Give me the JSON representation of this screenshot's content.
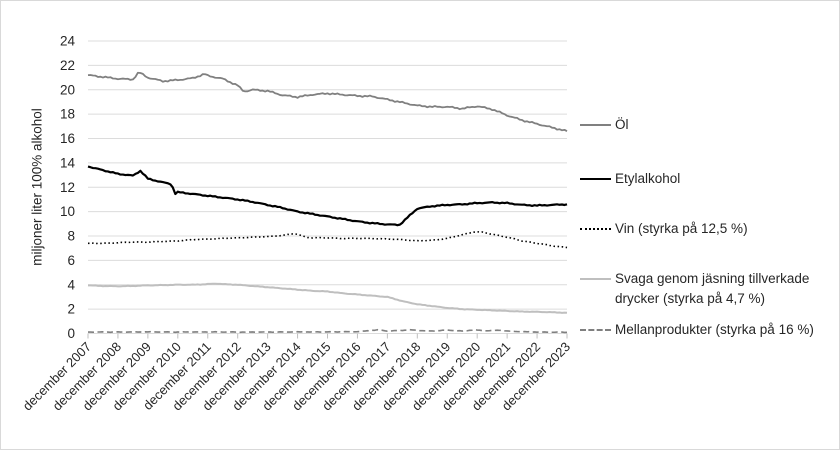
{
  "window": {
    "background": "#ffffff",
    "border_color": "#d9d9d9"
  },
  "chart_data": {
    "type": "line",
    "title": "",
    "ylabel": "miljoner liter 100% alkohol",
    "xlabel": "",
    "ylim": [
      0,
      24
    ],
    "ytick_step": 2,
    "grid": "horizontal",
    "gridline_color": "#dcdcdc",
    "axis_text_color": "#262626",
    "tick_mark_color": "#bfbfbf",
    "legend_position": "right",
    "x_unit": "years_after_december_2007",
    "x_tick_labels": [
      "december 2007",
      "december 2008",
      "december 2009",
      "december 2010",
      "december 2011",
      "december 2012",
      "december 2013",
      "december 2014",
      "december 2015",
      "december 2016",
      "december 2017",
      "december 2018",
      "december 2019",
      "december 2020",
      "december 2021",
      "december 2022",
      "december 2023"
    ],
    "series": [
      {
        "name": "Öl",
        "color": "#808080",
        "style": "solid",
        "width": 1.8,
        "noise": 0.07,
        "points": [
          [
            0,
            21.2
          ],
          [
            0.5,
            21.05
          ],
          [
            1,
            20.9
          ],
          [
            1.5,
            20.85
          ],
          [
            1.7,
            21.45
          ],
          [
            2,
            21.0
          ],
          [
            2.5,
            20.7
          ],
          [
            3,
            20.8
          ],
          [
            3.5,
            20.95
          ],
          [
            3.9,
            21.3
          ],
          [
            4,
            21.15
          ],
          [
            4.5,
            20.9
          ],
          [
            5,
            20.35
          ],
          [
            5.2,
            19.85
          ],
          [
            5.5,
            20.0
          ],
          [
            6,
            19.9
          ],
          [
            6.5,
            19.55
          ],
          [
            7,
            19.4
          ],
          [
            7.5,
            19.6
          ],
          [
            8,
            19.7
          ],
          [
            8.5,
            19.6
          ],
          [
            9,
            19.5
          ],
          [
            9.5,
            19.45
          ],
          [
            10,
            19.2
          ],
          [
            10.5,
            18.95
          ],
          [
            11,
            18.7
          ],
          [
            11.5,
            18.6
          ],
          [
            12,
            18.6
          ],
          [
            12.5,
            18.45
          ],
          [
            13,
            18.65
          ],
          [
            13.5,
            18.4
          ],
          [
            14,
            17.9
          ],
          [
            14.5,
            17.5
          ],
          [
            15,
            17.2
          ],
          [
            15.5,
            16.9
          ],
          [
            16,
            16.6
          ]
        ]
      },
      {
        "name": "Etylalkohol",
        "color": "#000000",
        "style": "solid",
        "width": 2.2,
        "noise": 0.05,
        "points": [
          [
            0,
            13.7
          ],
          [
            0.5,
            13.4
          ],
          [
            1,
            13.1
          ],
          [
            1.5,
            12.95
          ],
          [
            1.75,
            13.35
          ],
          [
            2,
            12.7
          ],
          [
            2.5,
            12.4
          ],
          [
            2.8,
            12.25
          ],
          [
            2.9,
            11.45
          ],
          [
            3,
            11.6
          ],
          [
            3.5,
            11.45
          ],
          [
            4,
            11.3
          ],
          [
            4.5,
            11.15
          ],
          [
            5,
            11.0
          ],
          [
            5.5,
            10.8
          ],
          [
            6,
            10.55
          ],
          [
            6.5,
            10.3
          ],
          [
            7,
            10.0
          ],
          [
            7.5,
            9.8
          ],
          [
            8,
            9.6
          ],
          [
            8.5,
            9.4
          ],
          [
            9,
            9.2
          ],
          [
            9.5,
            9.05
          ],
          [
            10,
            8.95
          ],
          [
            10.4,
            8.9
          ],
          [
            11,
            10.25
          ],
          [
            11.5,
            10.45
          ],
          [
            12,
            10.55
          ],
          [
            12.5,
            10.6
          ],
          [
            13,
            10.7
          ],
          [
            13.5,
            10.75
          ],
          [
            14,
            10.7
          ],
          [
            14.5,
            10.55
          ],
          [
            15,
            10.5
          ],
          [
            15.5,
            10.55
          ],
          [
            16,
            10.6
          ]
        ]
      },
      {
        "name": "Vin (styrka på 12,5 %)",
        "color": "#000000",
        "style": "dotted",
        "width": 1.6,
        "noise": 0.03,
        "points": [
          [
            0,
            7.4
          ],
          [
            0.5,
            7.4
          ],
          [
            1,
            7.45
          ],
          [
            1.5,
            7.5
          ],
          [
            2,
            7.5
          ],
          [
            2.5,
            7.55
          ],
          [
            3,
            7.6
          ],
          [
            3.5,
            7.7
          ],
          [
            4,
            7.75
          ],
          [
            4.5,
            7.8
          ],
          [
            5,
            7.85
          ],
          [
            5.5,
            7.9
          ],
          [
            6,
            7.95
          ],
          [
            6.5,
            8.05
          ],
          [
            6.9,
            8.2
          ],
          [
            7.3,
            7.9
          ],
          [
            7.5,
            7.85
          ],
          [
            8,
            7.85
          ],
          [
            8.5,
            7.8
          ],
          [
            9,
            7.8
          ],
          [
            9.5,
            7.8
          ],
          [
            10,
            7.75
          ],
          [
            10.5,
            7.7
          ],
          [
            11,
            7.6
          ],
          [
            11.5,
            7.65
          ],
          [
            12,
            7.8
          ],
          [
            12.5,
            8.1
          ],
          [
            12.9,
            8.35
          ],
          [
            13.2,
            8.3
          ],
          [
            13.5,
            8.15
          ],
          [
            14,
            7.9
          ],
          [
            14.5,
            7.6
          ],
          [
            15,
            7.4
          ],
          [
            15.5,
            7.2
          ],
          [
            16,
            7.05
          ]
        ]
      },
      {
        "name": "Svaga genom jäsning tillverkade drycker (styrka på 4,7 %)",
        "color": "#bfbfbf",
        "style": "solid",
        "width": 2,
        "noise": 0.025,
        "points": [
          [
            0,
            3.95
          ],
          [
            0.5,
            3.9
          ],
          [
            1,
            3.88
          ],
          [
            1.5,
            3.9
          ],
          [
            2,
            3.95
          ],
          [
            2.5,
            3.97
          ],
          [
            3,
            4.0
          ],
          [
            3.5,
            4.0
          ],
          [
            4,
            4.05
          ],
          [
            4.3,
            4.1
          ],
          [
            4.5,
            4.05
          ],
          [
            5,
            4.0
          ],
          [
            5.5,
            3.9
          ],
          [
            6,
            3.8
          ],
          [
            6.5,
            3.7
          ],
          [
            7,
            3.6
          ],
          [
            7.5,
            3.5
          ],
          [
            8,
            3.45
          ],
          [
            8.5,
            3.3
          ],
          [
            9,
            3.2
          ],
          [
            9.5,
            3.1
          ],
          [
            10,
            3.0
          ],
          [
            10.3,
            2.8
          ],
          [
            10.5,
            2.65
          ],
          [
            11,
            2.4
          ],
          [
            11.5,
            2.25
          ],
          [
            12,
            2.1
          ],
          [
            12.5,
            2.0
          ],
          [
            13,
            1.95
          ],
          [
            13.5,
            1.9
          ],
          [
            14,
            1.85
          ],
          [
            14.5,
            1.8
          ],
          [
            15,
            1.78
          ],
          [
            15.5,
            1.74
          ],
          [
            16,
            1.7
          ]
        ]
      },
      {
        "name": "Mellanprodukter (styrka på 16 %)",
        "color": "#7f7f7f",
        "style": "dashed",
        "width": 1.6,
        "noise": 0.02,
        "points": [
          [
            0,
            0.12
          ],
          [
            1,
            0.12
          ],
          [
            2,
            0.13
          ],
          [
            3,
            0.12
          ],
          [
            4,
            0.13
          ],
          [
            5,
            0.12
          ],
          [
            6,
            0.12
          ],
          [
            7,
            0.13
          ],
          [
            8,
            0.13
          ],
          [
            9,
            0.15
          ],
          [
            9.7,
            0.3
          ],
          [
            10,
            0.2
          ],
          [
            10.8,
            0.3
          ],
          [
            11,
            0.25
          ],
          [
            11.5,
            0.2
          ],
          [
            12,
            0.28
          ],
          [
            12.5,
            0.2
          ],
          [
            12.9,
            0.3
          ],
          [
            13.3,
            0.22
          ],
          [
            13.8,
            0.28
          ],
          [
            14,
            0.2
          ],
          [
            14.5,
            0.15
          ],
          [
            15,
            0.12
          ],
          [
            16,
            0.1
          ]
        ]
      }
    ]
  }
}
